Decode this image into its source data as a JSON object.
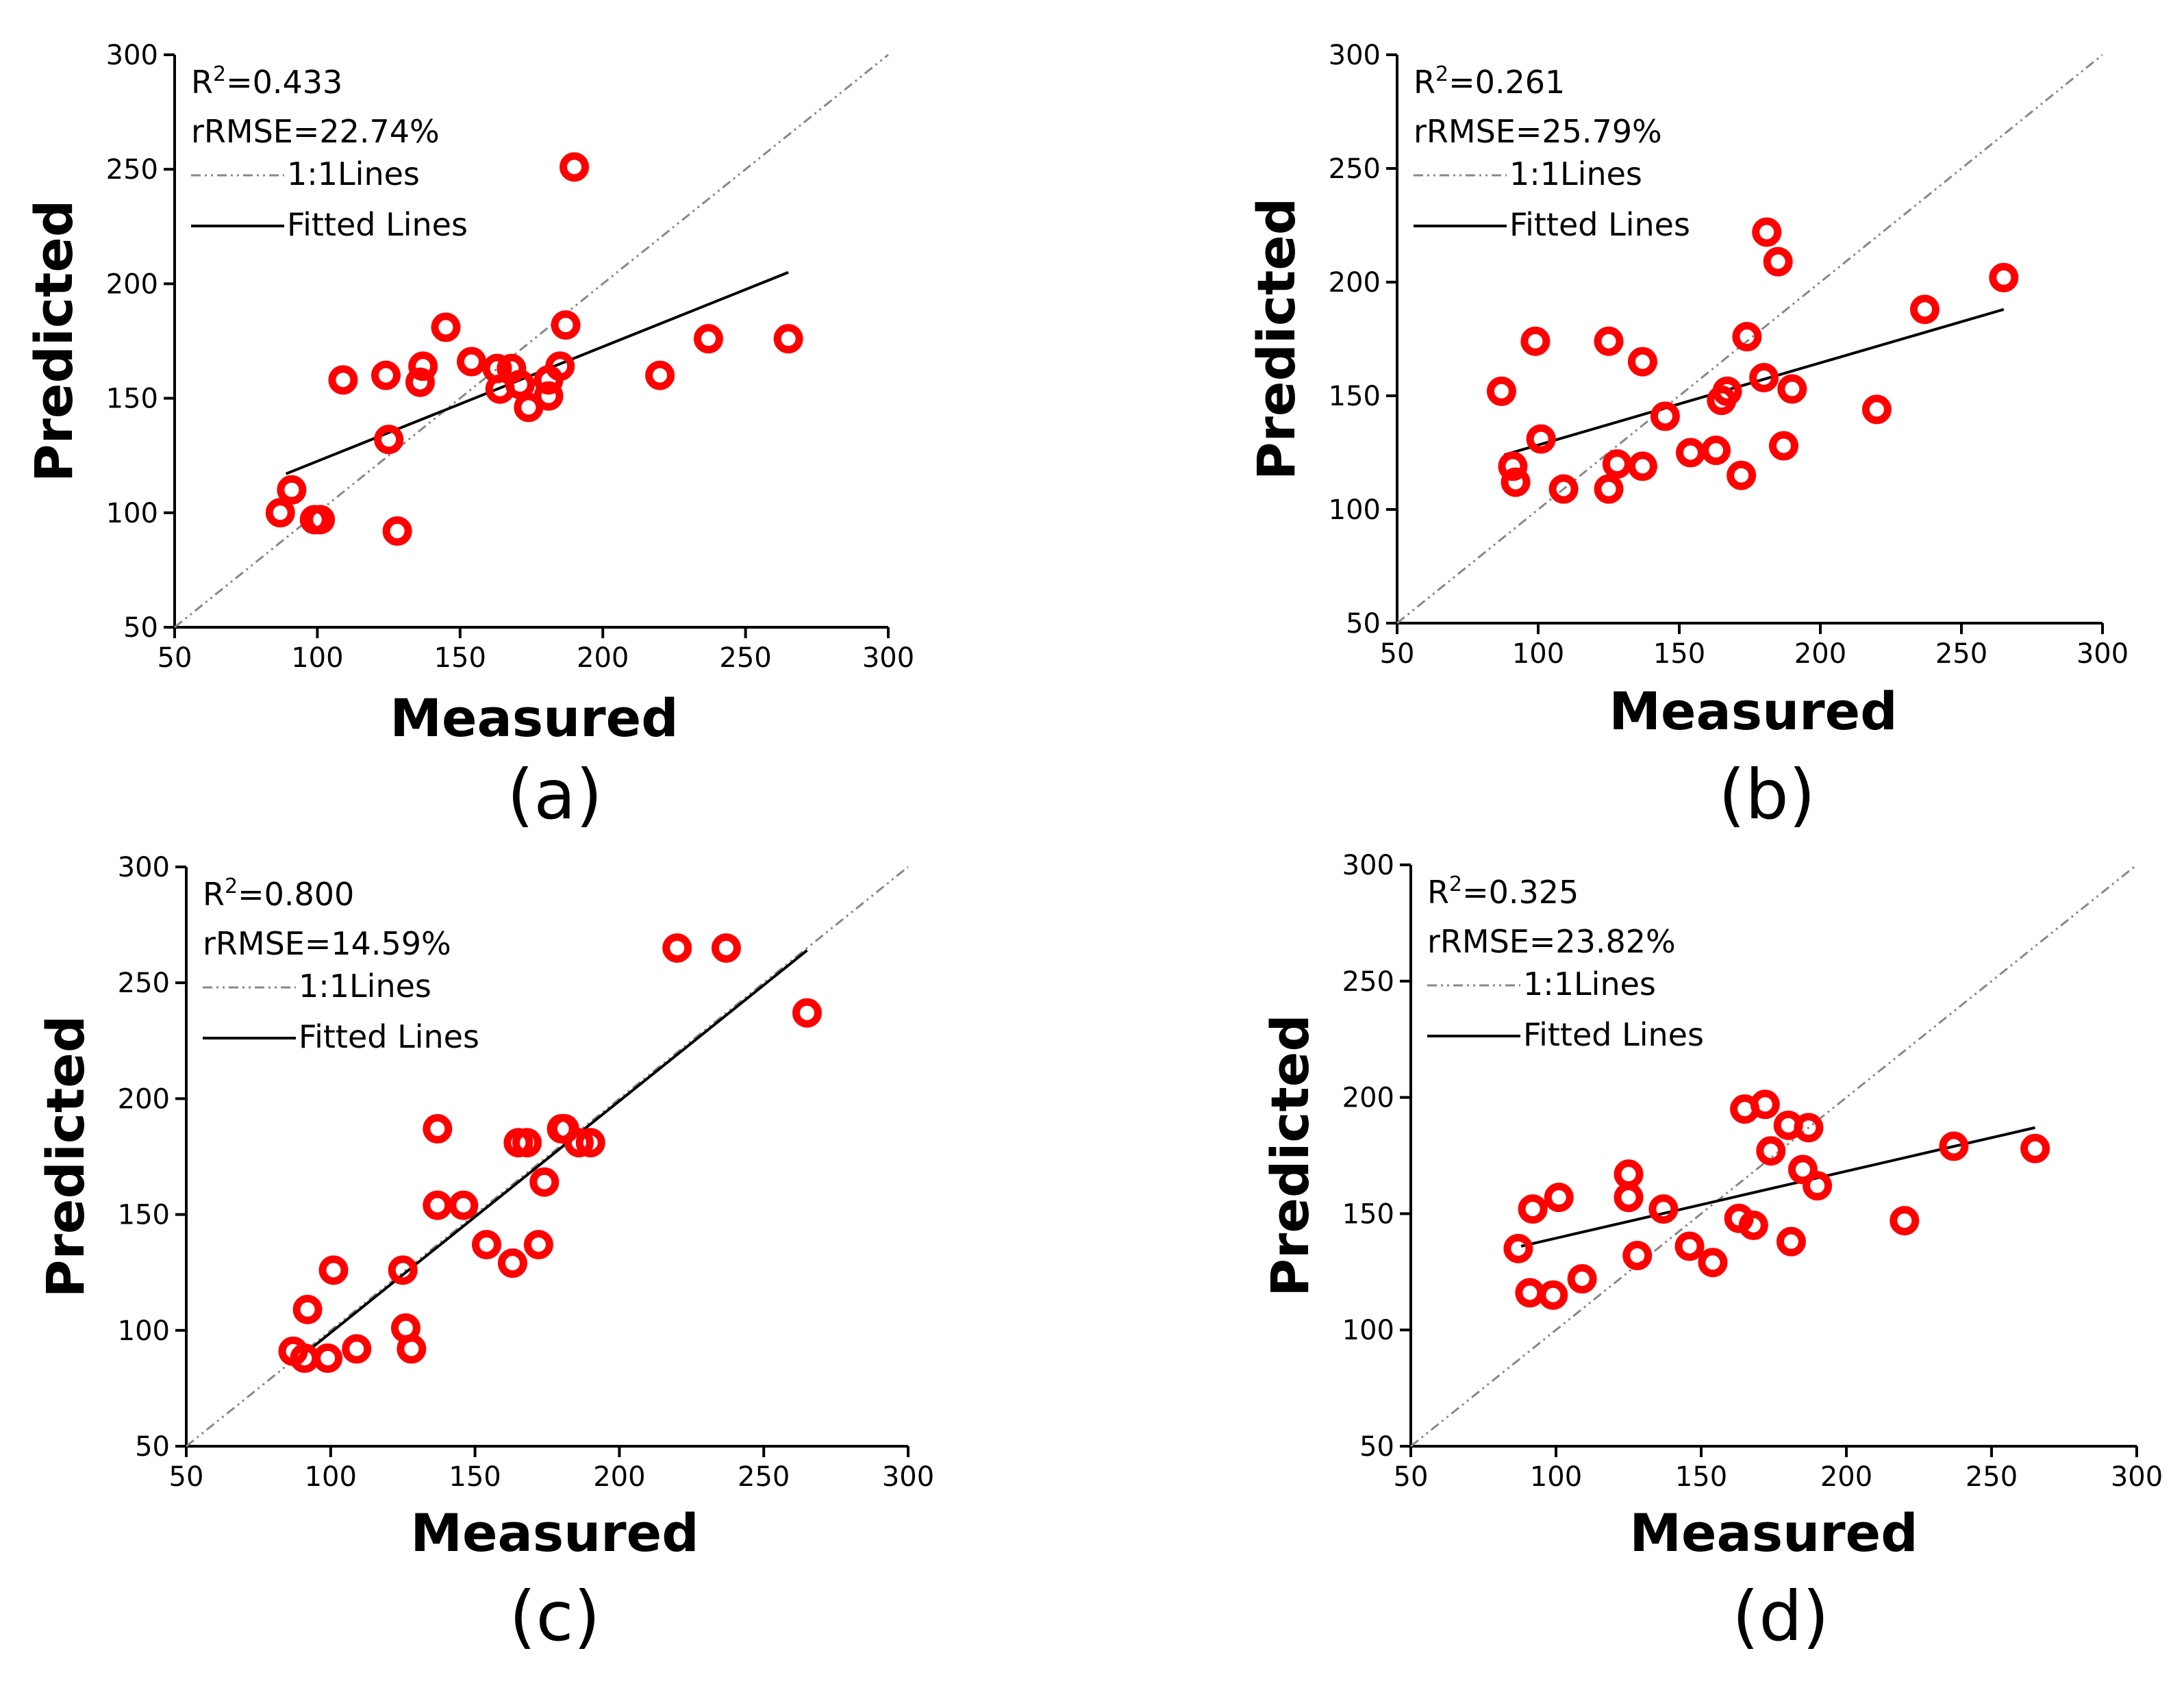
{
  "chart_data": [
    {
      "type": "scatter",
      "panel_label": "(a)",
      "xlabel": "Measured",
      "ylabel": "Predicted",
      "xlim": [
        50,
        300
      ],
      "ylim": [
        50,
        300
      ],
      "xticks": [
        "50",
        "100",
        "150",
        "200",
        "250",
        "300"
      ],
      "yticks": [
        "50",
        "100",
        "150",
        "200",
        "250",
        "300"
      ],
      "stats": {
        "r2_prefix": "R",
        "r2_sup": "2",
        "r2_value": "=0.433",
        "rrmse": "rRMSE=22.74%"
      },
      "legend": {
        "one_to_one": "1:1Lines",
        "fitted": "Fitted Lines"
      },
      "marker_color": "#ff0000",
      "fitted_line": {
        "x": [
          89,
          265
        ],
        "y": [
          117,
          205
        ]
      },
      "points": [
        {
          "x": 87,
          "y": 100
        },
        {
          "x": 91,
          "y": 110
        },
        {
          "x": 99,
          "y": 97
        },
        {
          "x": 101,
          "y": 97
        },
        {
          "x": 109,
          "y": 158
        },
        {
          "x": 124,
          "y": 160
        },
        {
          "x": 125,
          "y": 132
        },
        {
          "x": 128,
          "y": 92
        },
        {
          "x": 136,
          "y": 157
        },
        {
          "x": 137,
          "y": 164
        },
        {
          "x": 145,
          "y": 181
        },
        {
          "x": 154,
          "y": 166
        },
        {
          "x": 163,
          "y": 163
        },
        {
          "x": 164,
          "y": 154
        },
        {
          "x": 168,
          "y": 163
        },
        {
          "x": 171,
          "y": 156
        },
        {
          "x": 174,
          "y": 146
        },
        {
          "x": 181,
          "y": 158
        },
        {
          "x": 181,
          "y": 151
        },
        {
          "x": 185,
          "y": 164
        },
        {
          "x": 187,
          "y": 182
        },
        {
          "x": 190,
          "y": 251
        },
        {
          "x": 220,
          "y": 160
        },
        {
          "x": 237,
          "y": 176
        },
        {
          "x": 265,
          "y": 176
        }
      ]
    },
    {
      "type": "scatter",
      "panel_label": "(b)",
      "xlabel": "Measured",
      "ylabel": "Predicted",
      "xlim": [
        50,
        300
      ],
      "ylim": [
        50,
        300
      ],
      "xticks": [
        "50",
        "100",
        "150",
        "200",
        "250",
        "300"
      ],
      "yticks": [
        "50",
        "100",
        "150",
        "200",
        "250",
        "300"
      ],
      "stats": {
        "r2_prefix": "R",
        "r2_sup": "2",
        "r2_value": "=0.261",
        "rrmse": "rRMSE=25.79%"
      },
      "legend": {
        "one_to_one": "1:1Lines",
        "fitted": "Fitted Lines"
      },
      "marker_color": "#ff0000",
      "fitted_line": {
        "x": [
          88,
          265
        ],
        "y": [
          124,
          188
        ]
      },
      "points": [
        {
          "x": 87,
          "y": 152
        },
        {
          "x": 91,
          "y": 119
        },
        {
          "x": 92,
          "y": 112
        },
        {
          "x": 99,
          "y": 174
        },
        {
          "x": 101,
          "y": 131
        },
        {
          "x": 109,
          "y": 109
        },
        {
          "x": 125,
          "y": 174
        },
        {
          "x": 125,
          "y": 109
        },
        {
          "x": 128,
          "y": 120
        },
        {
          "x": 137,
          "y": 165
        },
        {
          "x": 137,
          "y": 119
        },
        {
          "x": 145,
          "y": 141
        },
        {
          "x": 154,
          "y": 125
        },
        {
          "x": 163,
          "y": 126
        },
        {
          "x": 165,
          "y": 148
        },
        {
          "x": 167,
          "y": 152
        },
        {
          "x": 172,
          "y": 115
        },
        {
          "x": 174,
          "y": 176
        },
        {
          "x": 180,
          "y": 158
        },
        {
          "x": 181,
          "y": 222
        },
        {
          "x": 185,
          "y": 209
        },
        {
          "x": 187,
          "y": 128
        },
        {
          "x": 190,
          "y": 153
        },
        {
          "x": 220,
          "y": 144
        },
        {
          "x": 237,
          "y": 188
        },
        {
          "x": 265,
          "y": 202
        }
      ]
    },
    {
      "type": "scatter",
      "panel_label": "(c)",
      "xlabel": "Measured",
      "ylabel": "Predicted",
      "xlim": [
        50,
        300
      ],
      "ylim": [
        50,
        300
      ],
      "xticks": [
        "50",
        "100",
        "150",
        "200",
        "250",
        "300"
      ],
      "yticks": [
        "50",
        "100",
        "150",
        "200",
        "250",
        "300"
      ],
      "stats": {
        "r2_prefix": "R",
        "r2_sup": "2",
        "r2_value": "=0.800",
        "rrmse": "rRMSE=14.59%"
      },
      "legend": {
        "one_to_one": "1:1Lines",
        "fitted": "Fitted Lines"
      },
      "marker_color": "#ff0000",
      "fitted_line": {
        "x": [
          88,
          265
        ],
        "y": [
          87,
          264
        ]
      },
      "points": [
        {
          "x": 87,
          "y": 91
        },
        {
          "x": 91,
          "y": 88
        },
        {
          "x": 92,
          "y": 109
        },
        {
          "x": 99,
          "y": 88
        },
        {
          "x": 101,
          "y": 126
        },
        {
          "x": 109,
          "y": 92
        },
        {
          "x": 125,
          "y": 126
        },
        {
          "x": 126,
          "y": 101
        },
        {
          "x": 128,
          "y": 92
        },
        {
          "x": 137,
          "y": 187
        },
        {
          "x": 137,
          "y": 154
        },
        {
          "x": 146,
          "y": 154
        },
        {
          "x": 154,
          "y": 137
        },
        {
          "x": 163,
          "y": 129
        },
        {
          "x": 165,
          "y": 181
        },
        {
          "x": 168,
          "y": 181
        },
        {
          "x": 172,
          "y": 137
        },
        {
          "x": 174,
          "y": 164
        },
        {
          "x": 180,
          "y": 187
        },
        {
          "x": 181,
          "y": 187
        },
        {
          "x": 186,
          "y": 181
        },
        {
          "x": 190,
          "y": 181
        },
        {
          "x": 220,
          "y": 265
        },
        {
          "x": 237,
          "y": 265
        },
        {
          "x": 265,
          "y": 237
        }
      ]
    },
    {
      "type": "scatter",
      "panel_label": "(d)",
      "xlabel": "Measured",
      "ylabel": "Predicted",
      "xlim": [
        50,
        300
      ],
      "ylim": [
        50,
        300
      ],
      "xticks": [
        "50",
        "100",
        "150",
        "200",
        "250",
        "300"
      ],
      "yticks": [
        "50",
        "100",
        "150",
        "200",
        "250",
        "300"
      ],
      "stats": {
        "r2_prefix": "R",
        "r2_sup": "2",
        "r2_value": "=0.325",
        "rrmse": "rRMSE=23.82%"
      },
      "legend": {
        "one_to_one": "1:1Lines",
        "fitted": "Fitted Lines"
      },
      "marker_color": "#ff0000",
      "fitted_line": {
        "x": [
          88,
          265
        ],
        "y": [
          136,
          187
        ]
      },
      "points": [
        {
          "x": 87,
          "y": 135
        },
        {
          "x": 91,
          "y": 116
        },
        {
          "x": 92,
          "y": 152
        },
        {
          "x": 99,
          "y": 115
        },
        {
          "x": 101,
          "y": 157
        },
        {
          "x": 109,
          "y": 122
        },
        {
          "x": 125,
          "y": 167
        },
        {
          "x": 125,
          "y": 157
        },
        {
          "x": 128,
          "y": 132
        },
        {
          "x": 137,
          "y": 152
        },
        {
          "x": 146,
          "y": 136
        },
        {
          "x": 154,
          "y": 129
        },
        {
          "x": 163,
          "y": 148
        },
        {
          "x": 165,
          "y": 195
        },
        {
          "x": 168,
          "y": 145
        },
        {
          "x": 172,
          "y": 197
        },
        {
          "x": 174,
          "y": 177
        },
        {
          "x": 180,
          "y": 188
        },
        {
          "x": 181,
          "y": 138
        },
        {
          "x": 185,
          "y": 169
        },
        {
          "x": 187,
          "y": 187
        },
        {
          "x": 190,
          "y": 162
        },
        {
          "x": 220,
          "y": 147
        },
        {
          "x": 237,
          "y": 179
        },
        {
          "x": 265,
          "y": 178
        }
      ]
    }
  ]
}
